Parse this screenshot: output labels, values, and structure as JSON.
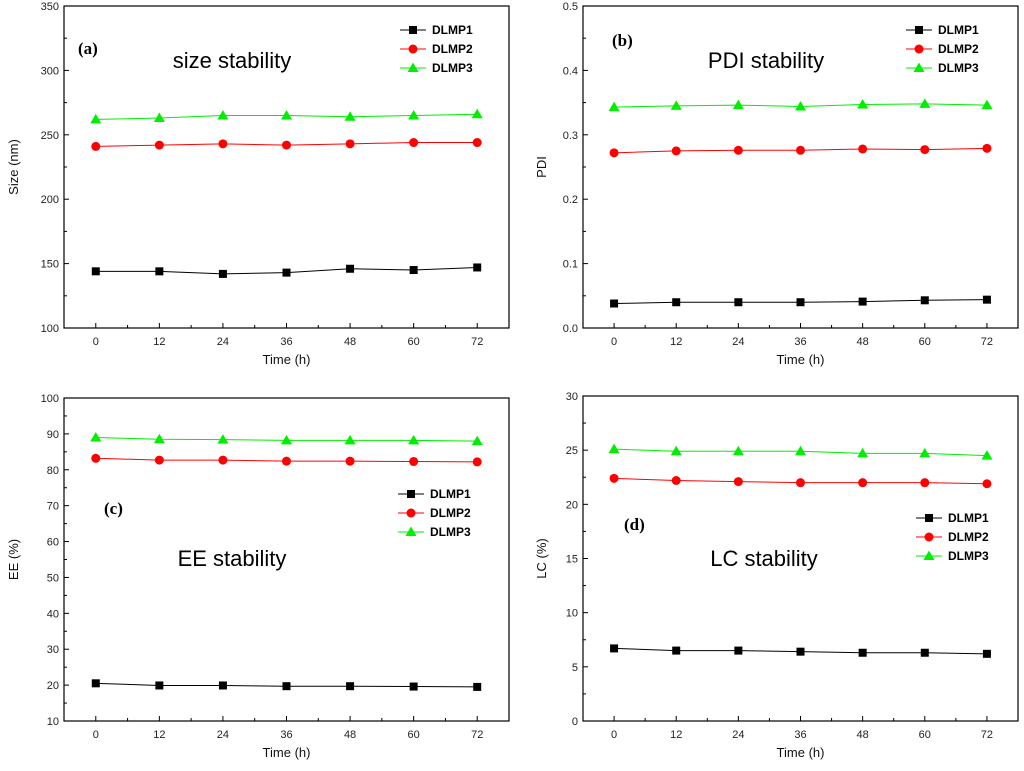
{
  "chart_data": [
    {
      "type": "line",
      "panel": "(a)",
      "title": "size stability",
      "xlabel": "Time (h)",
      "ylabel": "Size (nm)",
      "x": [
        0,
        12,
        24,
        36,
        48,
        60,
        72
      ],
      "xlim": [
        -6,
        78
      ],
      "ylim": [
        100,
        350
      ],
      "yticks": [
        100,
        150,
        200,
        250,
        300,
        350
      ],
      "ytick_labels": [
        "100",
        "150",
        "200",
        "250",
        "300",
        "350"
      ],
      "xticks": [
        0,
        12,
        24,
        36,
        48,
        60,
        72
      ],
      "xtick_labels": [
        "0",
        "12",
        "24",
        "36",
        "48",
        "60",
        "72"
      ],
      "legend_position": "top-right",
      "series": [
        {
          "name": "DLMP1",
          "color": "#000000",
          "marker": "square",
          "values": [
            144,
            144,
            142,
            143,
            146,
            145,
            147
          ]
        },
        {
          "name": "DLMP2",
          "color": "#ff0000",
          "marker": "circle",
          "values": [
            241,
            242,
            243,
            242,
            243,
            244,
            244
          ]
        },
        {
          "name": "DLMP3",
          "color": "#00ee00",
          "marker": "triangle",
          "values": [
            262,
            263,
            265,
            265,
            264,
            265,
            266
          ]
        }
      ]
    },
    {
      "type": "line",
      "panel": "(b)",
      "title": "PDI stability",
      "xlabel": "Time (h)",
      "ylabel": "PDI",
      "x": [
        0,
        12,
        24,
        36,
        48,
        60,
        72
      ],
      "xlim": [
        -6,
        78
      ],
      "ylim": [
        0,
        0.5
      ],
      "yticks": [
        0,
        0.1,
        0.2,
        0.3,
        0.4,
        0.5
      ],
      "ytick_labels": [
        "0.0",
        "0.1",
        "0.2",
        "0.3",
        "0.4",
        "0.5"
      ],
      "xticks": [
        0,
        12,
        24,
        36,
        48,
        60,
        72
      ],
      "xtick_labels": [
        "0",
        "12",
        "24",
        "36",
        "48",
        "60",
        "72"
      ],
      "legend_position": "top-right",
      "series": [
        {
          "name": "DLMP1",
          "color": "#000000",
          "marker": "square",
          "values": [
            0.038,
            0.04,
            0.04,
            0.04,
            0.041,
            0.043,
            0.044
          ]
        },
        {
          "name": "DLMP2",
          "color": "#ff0000",
          "marker": "circle",
          "values": [
            0.272,
            0.275,
            0.276,
            0.276,
            0.278,
            0.277,
            0.279
          ]
        },
        {
          "name": "DLMP3",
          "color": "#00ee00",
          "marker": "triangle",
          "values": [
            0.343,
            0.345,
            0.346,
            0.344,
            0.347,
            0.348,
            0.346
          ]
        }
      ]
    },
    {
      "type": "line",
      "panel": "(c)",
      "title": "EE stability",
      "xlabel": "Time (h)",
      "ylabel": "EE (%)",
      "x": [
        0,
        12,
        24,
        36,
        48,
        60,
        72
      ],
      "xlim": [
        -6,
        78
      ],
      "ylim": [
        10,
        100
      ],
      "yticks": [
        10,
        20,
        30,
        40,
        50,
        60,
        70,
        80,
        90,
        100
      ],
      "ytick_labels": [
        "10",
        "20",
        "30",
        "40",
        "50",
        "60",
        "70",
        "80",
        "90",
        "100"
      ],
      "xticks": [
        0,
        12,
        24,
        36,
        48,
        60,
        72
      ],
      "xtick_labels": [
        "0",
        "12",
        "24",
        "36",
        "48",
        "60",
        "72"
      ],
      "legend_position": "middle-right",
      "series": [
        {
          "name": "DLMP1",
          "color": "#000000",
          "marker": "square",
          "values": [
            20.5,
            19.9,
            19.9,
            19.7,
            19.7,
            19.6,
            19.5
          ]
        },
        {
          "name": "DLMP2",
          "color": "#ff0000",
          "marker": "circle",
          "values": [
            83.2,
            82.7,
            82.7,
            82.4,
            82.4,
            82.3,
            82.2
          ]
        },
        {
          "name": "DLMP3",
          "color": "#00ee00",
          "marker": "triangle",
          "values": [
            89.0,
            88.5,
            88.4,
            88.2,
            88.2,
            88.2,
            88.0
          ]
        }
      ]
    },
    {
      "type": "line",
      "panel": "(d)",
      "title": "LC stability",
      "xlabel": "Time (h)",
      "ylabel": "LC (%)",
      "x": [
        0,
        12,
        24,
        36,
        48,
        60,
        72
      ],
      "xlim": [
        -6,
        78
      ],
      "ylim": [
        0,
        30
      ],
      "yticks": [
        0,
        5,
        10,
        15,
        20,
        25,
        30
      ],
      "ytick_labels": [
        "0",
        "5",
        "10",
        "15",
        "20",
        "25",
        "30"
      ],
      "xticks": [
        0,
        12,
        24,
        36,
        48,
        60,
        72
      ],
      "xtick_labels": [
        "0",
        "12",
        "24",
        "36",
        "48",
        "60",
        "72"
      ],
      "legend_position": "middle-right",
      "series": [
        {
          "name": "DLMP1",
          "color": "#000000",
          "marker": "square",
          "values": [
            6.7,
            6.5,
            6.5,
            6.4,
            6.3,
            6.3,
            6.2
          ]
        },
        {
          "name": "DLMP2",
          "color": "#ff0000",
          "marker": "circle",
          "values": [
            22.4,
            22.2,
            22.1,
            22.0,
            22.0,
            22.0,
            21.9
          ]
        },
        {
          "name": "DLMP3",
          "color": "#00ee00",
          "marker": "triangle",
          "values": [
            25.1,
            24.9,
            24.9,
            24.9,
            24.7,
            24.7,
            24.5
          ]
        }
      ]
    }
  ]
}
